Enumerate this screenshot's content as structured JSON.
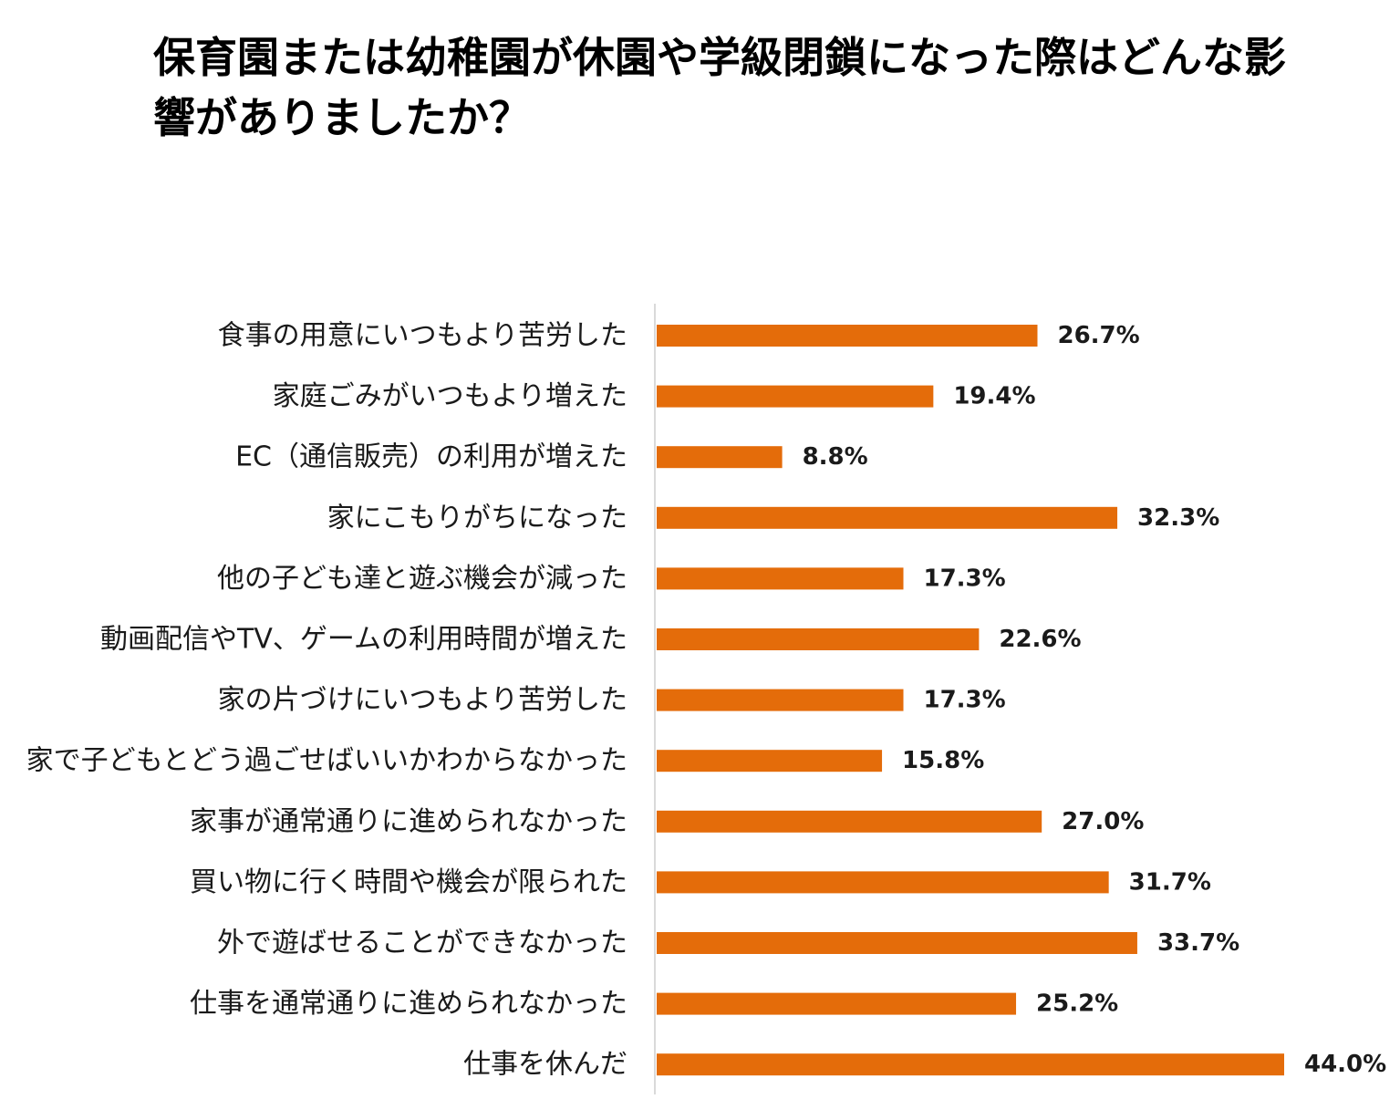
{
  "chart_data": {
    "type": "bar",
    "orientation": "horizontal",
    "title": "保育園または幼稚園が休園や学級閉鎖になった際はどんな影響がありましたか？",
    "categories": [
      "食事の用意にいつもより苦労した",
      "家庭ごみがいつもより増えた",
      "EC（通信販売）の利用が増えた",
      "家にこもりがちになった",
      "他の子ども達と遊ぶ機会が減った",
      "動画配信やTV、ゲームの利用時間が増えた",
      "家の片づけにいつもより苦労した",
      "家で子どもとどう過ごせばいいかわからなかった",
      "家事が通常通りに進められなかった",
      "買い物に行く時間や機会が限られた",
      "外で遊ばせることができなかった",
      "仕事を通常通りに進められなかった",
      "仕事を休んだ"
    ],
    "values": [
      26.7,
      19.4,
      8.8,
      32.3,
      17.3,
      22.6,
      17.3,
      15.8,
      27.0,
      31.7,
      33.7,
      25.2,
      44.0
    ],
    "value_labels": [
      "26.7%",
      "19.4%",
      "8.8%",
      "32.3%",
      "17.3%",
      "22.6%",
      "17.3%",
      "15.8%",
      "27.0%",
      "31.7%",
      "33.7%",
      "25.2%",
      "44.0%"
    ],
    "unit": "%",
    "xlim": [
      0,
      44.0
    ],
    "grid": false,
    "legend": "none",
    "bar_color": "#E46C0A",
    "axis_color": "#D9D9D9"
  }
}
